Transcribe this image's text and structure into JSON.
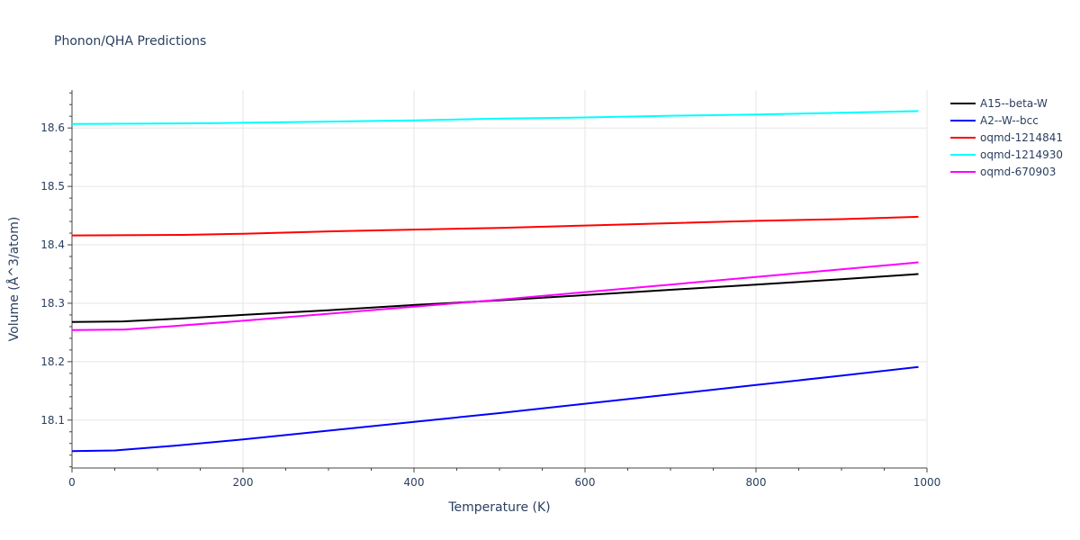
{
  "chart_data": {
    "type": "line",
    "title": "Phonon/QHA Predictions",
    "xlabel": "Temperature (K)",
    "ylabel": "Volume (Å^3/atom)",
    "xlim": [
      0,
      1000
    ],
    "ylim": [
      18.018,
      18.665
    ],
    "x_ticks": [
      0,
      200,
      400,
      600,
      800,
      1000
    ],
    "x_tick_labels": [
      "0",
      "200",
      "400",
      "600",
      "800",
      "1000"
    ],
    "y_ticks": [
      18.1,
      18.2,
      18.3,
      18.4,
      18.5,
      18.6
    ],
    "y_tick_labels": [
      "18.1",
      "18.2",
      "18.3",
      "18.4",
      "18.5",
      "18.6"
    ],
    "grid": true,
    "legend_position": "top-right",
    "series": [
      {
        "name": "A15--beta-W",
        "color": "#000000",
        "x": [
          0,
          60,
          130,
          200,
          300,
          400,
          500,
          600,
          700,
          800,
          900,
          990
        ],
        "y": [
          18.268,
          18.269,
          18.274,
          18.28,
          18.288,
          18.297,
          18.305,
          18.314,
          18.323,
          18.332,
          18.341,
          18.35
        ]
      },
      {
        "name": "A2--W--bcc",
        "color": "#0000ff",
        "x": [
          0,
          50,
          120,
          200,
          300,
          400,
          500,
          600,
          700,
          800,
          900,
          990
        ],
        "y": [
          18.047,
          18.048,
          18.056,
          18.067,
          18.082,
          18.097,
          18.112,
          18.128,
          18.144,
          18.16,
          18.176,
          18.191
        ]
      },
      {
        "name": "oqmd-1214841",
        "color": "#ff0000",
        "x": [
          0,
          130,
          200,
          300,
          400,
          500,
          600,
          700,
          800,
          900,
          990
        ],
        "y": [
          18.416,
          18.417,
          18.419,
          18.423,
          18.426,
          18.429,
          18.433,
          18.437,
          18.441,
          18.444,
          18.448
        ]
      },
      {
        "name": "oqmd-1214930",
        "color": "#00ffff",
        "x": [
          0,
          150,
          200,
          300,
          400,
          500,
          600,
          700,
          800,
          900,
          990
        ],
        "y": [
          18.607,
          18.608,
          18.609,
          18.611,
          18.613,
          18.616,
          18.618,
          18.621,
          18.623,
          18.626,
          18.629
        ]
      },
      {
        "name": "oqmd-670903",
        "color": "#ff00ff",
        "x": [
          0,
          60,
          120,
          200,
          300,
          400,
          500,
          600,
          700,
          800,
          900,
          990
        ],
        "y": [
          18.254,
          18.255,
          18.261,
          18.27,
          18.282,
          18.294,
          18.306,
          18.319,
          18.332,
          18.345,
          18.358,
          18.37
        ]
      }
    ]
  }
}
